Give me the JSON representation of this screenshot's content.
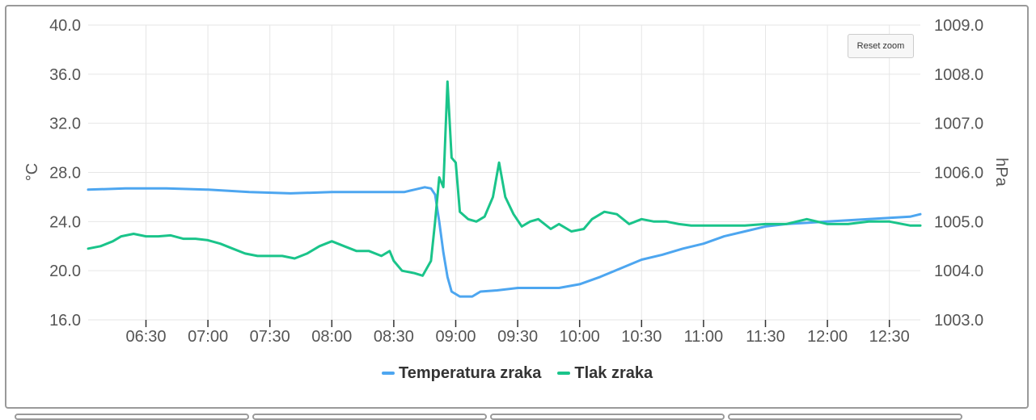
{
  "chart_data": {
    "type": "line",
    "title": "",
    "x_ticks": [
      "06:30",
      "07:00",
      "07:30",
      "08:00",
      "08:30",
      "09:00",
      "09:30",
      "10:00",
      "10:30",
      "11:00",
      "11:30",
      "12:00",
      "12:30"
    ],
    "x_range": [
      "06:02",
      "12:45"
    ],
    "y_left": {
      "label": "°C",
      "ticks": [
        "16.0",
        "20.0",
        "24.0",
        "28.0",
        "32.0",
        "36.0",
        "40.0"
      ],
      "range": [
        16,
        40
      ]
    },
    "y_right": {
      "label": "hPa",
      "ticks": [
        "1003.0",
        "1004.0",
        "1005.0",
        "1006.0",
        "1007.0",
        "1008.0",
        "1009.0"
      ],
      "range": [
        1003,
        1009
      ]
    },
    "grid": true,
    "legend_position": "bottom-center",
    "series": [
      {
        "name": "Temperatura zraka",
        "axis": "left",
        "color": "#4da6f0",
        "points": [
          [
            "06:02",
            26.6
          ],
          [
            "06:20",
            26.7
          ],
          [
            "06:40",
            26.7
          ],
          [
            "07:00",
            26.6
          ],
          [
            "07:20",
            26.4
          ],
          [
            "07:40",
            26.3
          ],
          [
            "08:00",
            26.4
          ],
          [
            "08:20",
            26.4
          ],
          [
            "08:35",
            26.4
          ],
          [
            "08:40",
            26.6
          ],
          [
            "08:45",
            26.8
          ],
          [
            "08:48",
            26.7
          ],
          [
            "08:50",
            26.2
          ],
          [
            "08:52",
            24.0
          ],
          [
            "08:54",
            21.5
          ],
          [
            "08:56",
            19.5
          ],
          [
            "08:58",
            18.3
          ],
          [
            "09:02",
            17.9
          ],
          [
            "09:08",
            17.9
          ],
          [
            "09:12",
            18.3
          ],
          [
            "09:20",
            18.4
          ],
          [
            "09:30",
            18.6
          ],
          [
            "09:40",
            18.6
          ],
          [
            "09:50",
            18.6
          ],
          [
            "10:00",
            18.9
          ],
          [
            "10:10",
            19.5
          ],
          [
            "10:20",
            20.2
          ],
          [
            "10:30",
            20.9
          ],
          [
            "10:40",
            21.3
          ],
          [
            "10:50",
            21.8
          ],
          [
            "11:00",
            22.2
          ],
          [
            "11:10",
            22.8
          ],
          [
            "11:20",
            23.2
          ],
          [
            "11:30",
            23.6
          ],
          [
            "11:40",
            23.8
          ],
          [
            "11:50",
            23.9
          ],
          [
            "12:00",
            24.0
          ],
          [
            "12:10",
            24.1
          ],
          [
            "12:20",
            24.2
          ],
          [
            "12:30",
            24.3
          ],
          [
            "12:40",
            24.4
          ],
          [
            "12:45",
            24.6
          ]
        ]
      },
      {
        "name": "Tlak zraka",
        "axis": "right",
        "color": "#1ac48a",
        "points": [
          [
            "06:02",
            1004.45
          ],
          [
            "06:08",
            1004.5
          ],
          [
            "06:14",
            1004.6
          ],
          [
            "06:18",
            1004.7
          ],
          [
            "06:24",
            1004.75
          ],
          [
            "06:30",
            1004.7
          ],
          [
            "06:36",
            1004.7
          ],
          [
            "06:42",
            1004.72
          ],
          [
            "06:48",
            1004.65
          ],
          [
            "06:54",
            1004.65
          ],
          [
            "07:00",
            1004.62
          ],
          [
            "07:06",
            1004.55
          ],
          [
            "07:12",
            1004.45
          ],
          [
            "07:18",
            1004.35
          ],
          [
            "07:24",
            1004.3
          ],
          [
            "07:30",
            1004.3
          ],
          [
            "07:36",
            1004.3
          ],
          [
            "07:42",
            1004.25
          ],
          [
            "07:48",
            1004.35
          ],
          [
            "07:54",
            1004.5
          ],
          [
            "08:00",
            1004.6
          ],
          [
            "08:06",
            1004.5
          ],
          [
            "08:12",
            1004.4
          ],
          [
            "08:18",
            1004.4
          ],
          [
            "08:24",
            1004.3
          ],
          [
            "08:28",
            1004.4
          ],
          [
            "08:30",
            1004.2
          ],
          [
            "08:34",
            1004.0
          ],
          [
            "08:40",
            1003.95
          ],
          [
            "08:44",
            1003.9
          ],
          [
            "08:48",
            1004.2
          ],
          [
            "08:50",
            1005.0
          ],
          [
            "08:52",
            1005.9
          ],
          [
            "08:54",
            1005.7
          ],
          [
            "08:56",
            1007.85
          ],
          [
            "08:58",
            1006.3
          ],
          [
            "09:00",
            1006.2
          ],
          [
            "09:02",
            1005.2
          ],
          [
            "09:06",
            1005.05
          ],
          [
            "09:10",
            1005.0
          ],
          [
            "09:14",
            1005.1
          ],
          [
            "09:18",
            1005.5
          ],
          [
            "09:21",
            1006.2
          ],
          [
            "09:24",
            1005.5
          ],
          [
            "09:28",
            1005.15
          ],
          [
            "09:32",
            1004.9
          ],
          [
            "09:36",
            1005.0
          ],
          [
            "09:40",
            1005.05
          ],
          [
            "09:46",
            1004.85
          ],
          [
            "09:50",
            1004.95
          ],
          [
            "09:56",
            1004.8
          ],
          [
            "10:02",
            1004.85
          ],
          [
            "10:06",
            1005.05
          ],
          [
            "10:12",
            1005.2
          ],
          [
            "10:18",
            1005.15
          ],
          [
            "10:24",
            1004.95
          ],
          [
            "10:30",
            1005.05
          ],
          [
            "10:36",
            1005.0
          ],
          [
            "10:42",
            1005.0
          ],
          [
            "10:48",
            1004.95
          ],
          [
            "10:54",
            1004.92
          ],
          [
            "11:00",
            1004.92
          ],
          [
            "11:10",
            1004.92
          ],
          [
            "11:20",
            1004.92
          ],
          [
            "11:30",
            1004.95
          ],
          [
            "11:40",
            1004.95
          ],
          [
            "11:50",
            1005.05
          ],
          [
            "12:00",
            1004.95
          ],
          [
            "12:10",
            1004.95
          ],
          [
            "12:20",
            1005.0
          ],
          [
            "12:30",
            1005.0
          ],
          [
            "12:40",
            1004.92
          ],
          [
            "12:45",
            1004.92
          ]
        ]
      }
    ]
  },
  "toolbar": {
    "reset_label": "Reset zoom"
  }
}
